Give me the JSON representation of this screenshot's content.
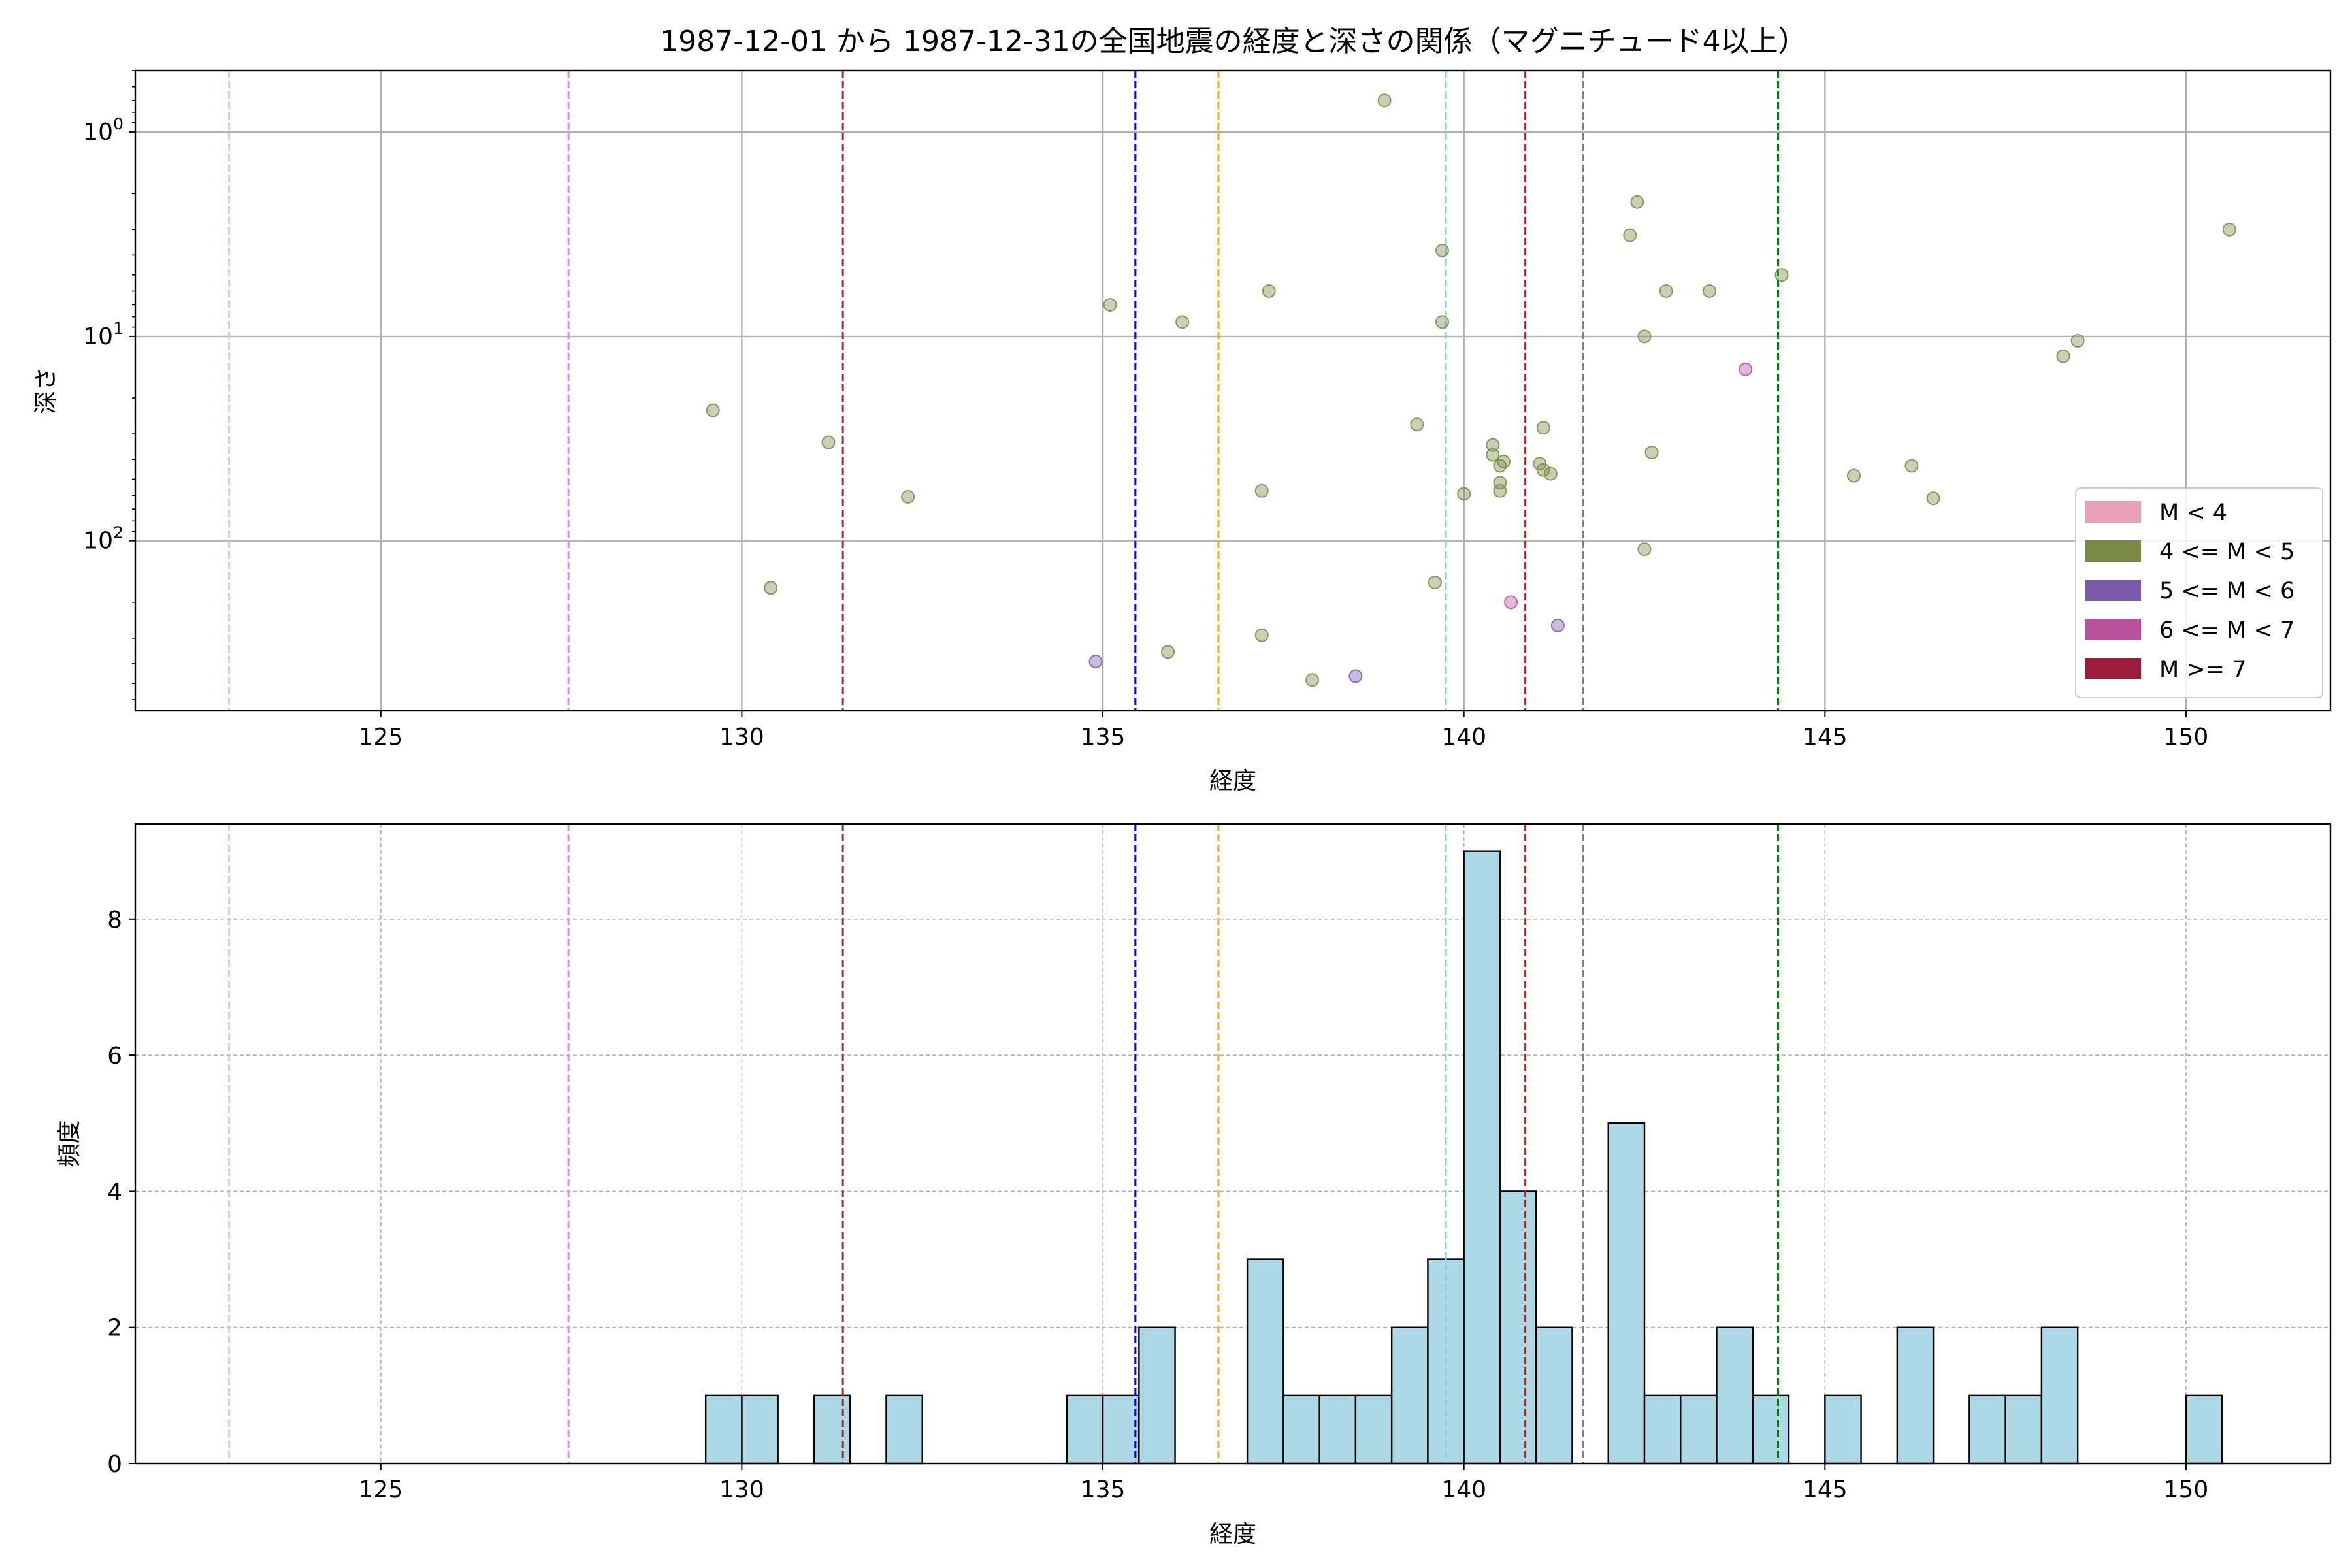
{
  "title": "1987-12-01 から 1987-12-31の全国地震の経度と深さの関係（マグニチュード4以上）",
  "chart_data": [
    {
      "type": "scatter",
      "xlabel": "経度",
      "ylabel": "深さ",
      "xlim": [
        121.6,
        152.0
      ],
      "y_scale": "log",
      "y_inverted": true,
      "ylim": [
        0.5,
        680
      ],
      "xticks": [
        "125",
        "130",
        "135",
        "140",
        "145",
        "150"
      ],
      "yticks": [
        "10^0",
        "10^1",
        "10^2"
      ],
      "grid": true,
      "legend_position": "lower-right",
      "legend": [
        {
          "label": "M < 4",
          "color": "#e8a0b8"
        },
        {
          "label": "4 <= M < 5",
          "color": "#7a8a45"
        },
        {
          "label": "5 <= M < 6",
          "color": "#7a5aa8"
        },
        {
          "label": "6 <= M < 7",
          "color": "#b8509b"
        },
        {
          "label": "M >= 7",
          "color": "#9c1c3c"
        }
      ],
      "vlines": [
        {
          "x": 122.9,
          "color": "#ffb6c1"
        },
        {
          "x": 127.6,
          "color": "#ee82ee"
        },
        {
          "x": 131.4,
          "color": "#a52a2a"
        },
        {
          "x": 135.45,
          "color": "#0000ff"
        },
        {
          "x": 136.6,
          "color": "#ffa500"
        },
        {
          "x": 139.75,
          "color": "#87cefa"
        },
        {
          "x": 140.85,
          "color": "#ff0000"
        },
        {
          "x": 141.65,
          "color": "#808080"
        },
        {
          "x": 144.35,
          "color": "#008000"
        }
      ],
      "series": [
        {
          "color": "#7a8a45",
          "points": [
            [
              129.6,
              23
            ],
            [
              130.4,
              170
            ],
            [
              131.2,
              33
            ],
            [
              132.3,
              61
            ],
            [
              135.1,
              7
            ],
            [
              135.9,
              350
            ],
            [
              136.1,
              8.5
            ],
            [
              137.2,
              57
            ],
            [
              137.2,
              290
            ],
            [
              137.3,
              6
            ],
            [
              137.9,
              480
            ],
            [
              138.9,
              0.7
            ],
            [
              139.35,
              27
            ],
            [
              139.6,
              160
            ],
            [
              139.7,
              3.8
            ],
            [
              139.7,
              8.5
            ],
            [
              140.0,
              59
            ],
            [
              140.4,
              34
            ],
            [
              140.4,
              38
            ],
            [
              140.5,
              43
            ],
            [
              140.5,
              52
            ],
            [
              140.5,
              57
            ],
            [
              140.55,
              41
            ],
            [
              141.05,
              42
            ],
            [
              141.1,
              28
            ],
            [
              141.1,
              45
            ],
            [
              141.2,
              47
            ],
            [
              142.3,
              3.2
            ],
            [
              142.4,
              2.2
            ],
            [
              142.5,
              10
            ],
            [
              142.5,
              110
            ],
            [
              142.6,
              37
            ],
            [
              142.8,
              6
            ],
            [
              143.4,
              6
            ],
            [
              144.4,
              5
            ],
            [
              145.4,
              48
            ],
            [
              146.2,
              43
            ],
            [
              146.5,
              62
            ],
            [
              148.3,
              12.5
            ],
            [
              148.5,
              10.5
            ],
            [
              150.6,
              3
            ]
          ]
        },
        {
          "color": "#7a5aa8",
          "points": [
            [
              134.9,
              390
            ],
            [
              138.5,
              460
            ],
            [
              141.3,
              260
            ]
          ]
        },
        {
          "color": "#b8509b",
          "points": [
            [
              140.65,
              200
            ],
            [
              143.9,
              14.5
            ]
          ]
        }
      ]
    },
    {
      "type": "bar",
      "xlabel": "経度",
      "ylabel": "頻度",
      "xlim": [
        121.6,
        152.0
      ],
      "ylim": [
        0,
        9.4
      ],
      "xticks": [
        "125",
        "130",
        "135",
        "140",
        "145",
        "150"
      ],
      "yticks": [
        "0",
        "2",
        "4",
        "6",
        "8"
      ],
      "grid": true,
      "bin_width": 0.5,
      "bar_color": "#add8e6",
      "bins": [
        {
          "x": 129.5,
          "count": 1
        },
        {
          "x": 130.0,
          "count": 1
        },
        {
          "x": 131.0,
          "count": 1
        },
        {
          "x": 132.0,
          "count": 1
        },
        {
          "x": 134.5,
          "count": 1
        },
        {
          "x": 135.0,
          "count": 1
        },
        {
          "x": 135.5,
          "count": 2
        },
        {
          "x": 137.0,
          "count": 3
        },
        {
          "x": 137.5,
          "count": 1
        },
        {
          "x": 138.0,
          "count": 1
        },
        {
          "x": 138.5,
          "count": 1
        },
        {
          "x": 139.0,
          "count": 2
        },
        {
          "x": 139.5,
          "count": 3
        },
        {
          "x": 140.0,
          "count": 9
        },
        {
          "x": 140.5,
          "count": 4
        },
        {
          "x": 141.0,
          "count": 2
        },
        {
          "x": 142.0,
          "count": 5
        },
        {
          "x": 142.5,
          "count": 1
        },
        {
          "x": 143.0,
          "count": 1
        },
        {
          "x": 143.5,
          "count": 2
        },
        {
          "x": 144.0,
          "count": 1
        },
        {
          "x": 145.0,
          "count": 1
        },
        {
          "x": 146.0,
          "count": 2
        },
        {
          "x": 147.0,
          "count": 1
        },
        {
          "x": 147.5,
          "count": 1
        },
        {
          "x": 148.0,
          "count": 2
        },
        {
          "x": 150.0,
          "count": 1
        }
      ],
      "vlines": [
        {
          "x": 122.9,
          "color": "#ffb6c1"
        },
        {
          "x": 127.6,
          "color": "#ee82ee"
        },
        {
          "x": 131.4,
          "color": "#a52a2a"
        },
        {
          "x": 135.45,
          "color": "#0000ff"
        },
        {
          "x": 136.6,
          "color": "#ffa500"
        },
        {
          "x": 139.75,
          "color": "#87cefa"
        },
        {
          "x": 140.85,
          "color": "#ff0000"
        },
        {
          "x": 141.65,
          "color": "#808080"
        },
        {
          "x": 144.35,
          "color": "#008000"
        }
      ]
    }
  ]
}
